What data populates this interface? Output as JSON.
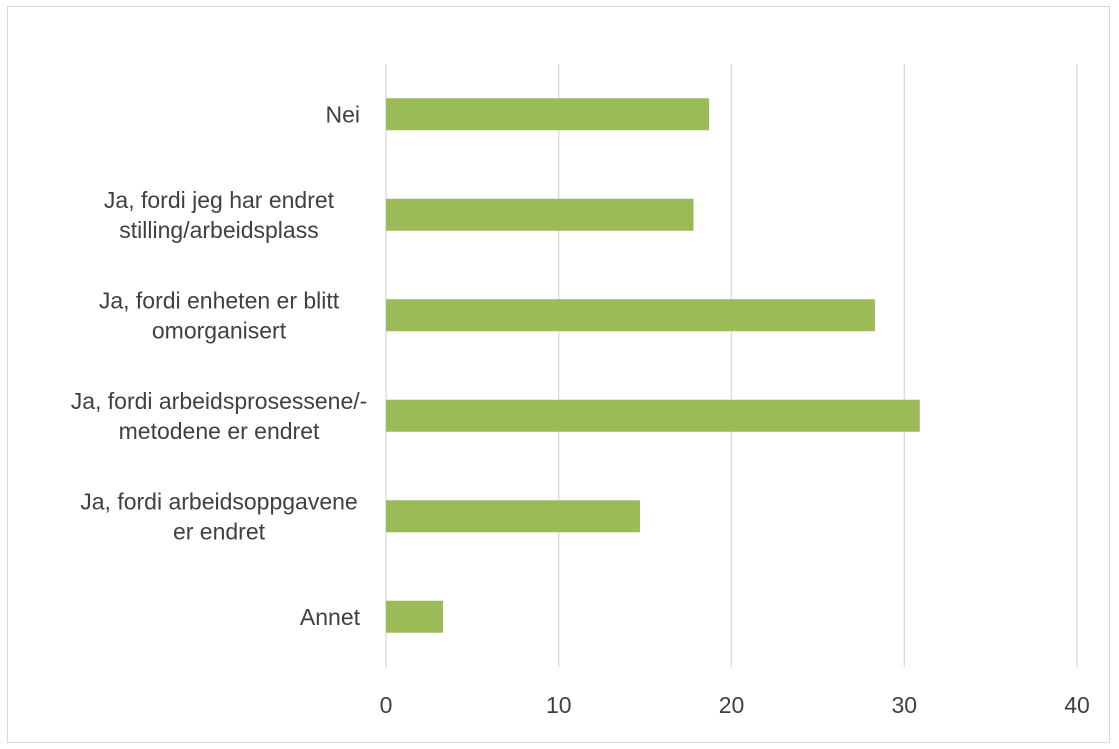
{
  "chart_data": {
    "type": "bar",
    "orientation": "horizontal",
    "categories": [
      "Nei",
      "Ja, fordi jeg har endret stilling/arbeidsplass",
      "Ja, fordi enheten er blitt omorganisert",
      "Ja, fordi arbeidsprosessene/-metodene er endret",
      "Ja, fordi arbeidsoppgavene er endret",
      "Annet"
    ],
    "category_lines": [
      [
        "Nei"
      ],
      [
        "Ja, fordi jeg har endret",
        "stilling/arbeidsplass"
      ],
      [
        "Ja, fordi enheten er blitt",
        "omorganisert"
      ],
      [
        "Ja, fordi arbeidsprosessene/-",
        "metodene er endret"
      ],
      [
        "Ja, fordi arbeidsoppgavene",
        "er endret"
      ],
      [
        "Annet"
      ]
    ],
    "values": [
      18.7,
      17.8,
      28.3,
      30.9,
      14.7,
      3.3
    ],
    "xlim": [
      0,
      40
    ],
    "xticks": [
      0,
      10,
      20,
      30,
      40
    ],
    "grid": true,
    "bar_color": "#9bbb59",
    "grid_color": "#d9d9d9",
    "title": "",
    "xlabel": "",
    "ylabel": ""
  }
}
